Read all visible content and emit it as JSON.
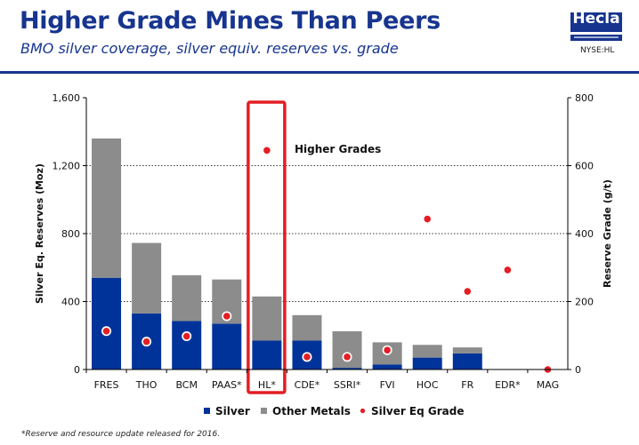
{
  "header": {
    "title": "Higher Grade Mines Than Peers",
    "subtitle": "BMO silver coverage, silver equiv. reserves vs. grade",
    "logo_text": "Hecla",
    "ticker": "NYSE:HL"
  },
  "colors": {
    "silver": "#003399",
    "other_metals": "#8c8c8c",
    "grade_dot": "#e31e24",
    "highlight_box": "#e31e24",
    "brand": "#17358f"
  },
  "chart_data": {
    "type": "bar",
    "stacked": true,
    "categories": [
      "FRES",
      "THO",
      "BCM",
      "PAAS*",
      "HL*",
      "CDE*",
      "SSRI*",
      "FVI",
      "HOC",
      "FR",
      "EDR*",
      "MAG"
    ],
    "series": [
      {
        "name": "Silver",
        "axis": "left",
        "values": [
          540,
          330,
          285,
          270,
          170,
          170,
          10,
          30,
          70,
          95,
          0,
          0
        ]
      },
      {
        "name": "Other Metals",
        "axis": "left",
        "values": [
          820,
          415,
          270,
          260,
          260,
          150,
          215,
          130,
          75,
          35,
          0,
          0
        ]
      },
      {
        "name": "Silver Eq Grade",
        "axis": "right",
        "type": "scatter",
        "values": [
          113,
          82,
          98,
          157,
          645,
          37,
          37,
          57,
          443,
          230,
          293,
          0
        ]
      }
    ],
    "ylabel": "Silver Eq. Reserves (Moz)",
    "y2label": "Reserve Grade (g/t)",
    "ylim": [
      0,
      1600
    ],
    "y2lim": [
      0,
      800
    ],
    "yticks": [
      "0",
      "400",
      "800",
      "1,200",
      "1,600"
    ],
    "y2ticks": [
      "0",
      "200",
      "400",
      "600",
      "800"
    ],
    "legend": [
      "Silver",
      "Other Metals",
      "Silver Eq Grade"
    ],
    "legend_position": "bottom",
    "annotation": "Higher Grades",
    "highlight_category": "HL*"
  },
  "footnote": "*Reserve and resource update released for 2016."
}
